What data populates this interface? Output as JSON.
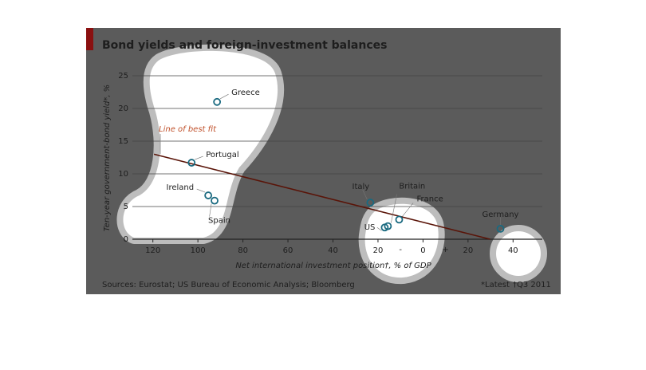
{
  "chart_data": {
    "type": "scatter",
    "title": "Bond yields and foreign-investment balances",
    "ylabel": "Ten-year government-bond yield*, %",
    "xlabel": "Net international investment position†, % of GDP",
    "labels": [
      "Greece",
      "Portugal",
      "Ireland",
      "Spain",
      "Italy",
      "US",
      "Britain",
      "France",
      "Germany"
    ],
    "x": [
      -91.5,
      -102.8,
      -95.4,
      -92.6,
      -23.4,
      -17,
      -15.6,
      -10.6,
      34.4
    ],
    "y": [
      21.0,
      11.7,
      6.7,
      5.9,
      5.6,
      1.8,
      2.0,
      3.0,
      1.6
    ],
    "color": "#1a6a80",
    "fit": {
      "label": "Line of best fit",
      "x": [
        -119.5,
        29.8
      ],
      "y": [
        13.0,
        0
      ],
      "color": "#5a1408",
      "label_color": "#c0502a"
    },
    "xlim": [
      -133,
      53
    ],
    "ylim": [
      0,
      25
    ],
    "xticks": [
      {
        "value": -120,
        "label": "120"
      },
      {
        "value": -100,
        "label": "100"
      },
      {
        "value": -80,
        "label": "80"
      },
      {
        "value": -60,
        "label": "60"
      },
      {
        "value": -40,
        "label": "40"
      },
      {
        "value": -20,
        "label": "20"
      },
      0,
      20,
      40
    ],
    "x_sign_labels": [
      {
        "value": -10,
        "label": "-"
      },
      {
        "value": 10,
        "label": "+"
      }
    ],
    "yticks": [
      0,
      5,
      10,
      15,
      20,
      25
    ],
    "grid": true,
    "source": "Sources: Eurostat; US Bureau of Economic Analysis; Bloomberg",
    "notes": [
      "*Latest",
      "†Q3 2011"
    ]
  }
}
